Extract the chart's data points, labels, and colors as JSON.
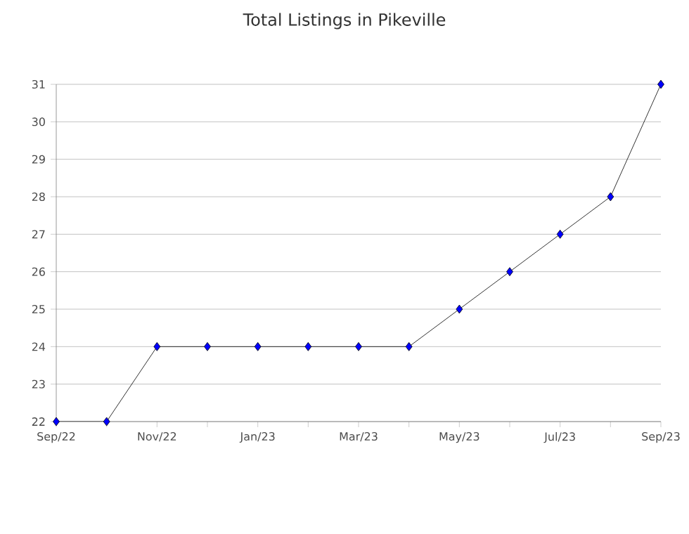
{
  "chart_data": {
    "type": "line",
    "title": "Total Listings in Pikeville",
    "x": [
      "2022-09",
      "2022-10",
      "2022-11",
      "2022-12",
      "2023-01",
      "2023-02",
      "2023-03",
      "2023-04",
      "2023-05",
      "2023-06",
      "2023-07",
      "2023-08",
      "2023-09"
    ],
    "series": [
      {
        "color": "#0000ff",
        "values": [
          22,
          22,
          24,
          24,
          24,
          24,
          24,
          24,
          25,
          26,
          27,
          28,
          31
        ]
      }
    ],
    "xlim": [
      "2022-09",
      "2023-09"
    ],
    "xticks": [
      {
        "value": "2022-09",
        "label": "Sep/22"
      },
      {
        "value": "2022-10",
        "label": null
      },
      {
        "value": "2022-11",
        "label": "Nov/22"
      },
      {
        "value": "2022-12",
        "label": null
      },
      {
        "value": "2023-01",
        "label": "Jan/23"
      },
      {
        "value": "2023-02",
        "label": null
      },
      {
        "value": "2023-03",
        "label": "Mar/23"
      },
      {
        "value": "2023-04",
        "label": null
      },
      {
        "value": "2023-05",
        "label": "May/23"
      },
      {
        "value": "2023-06",
        "label": null
      },
      {
        "value": "2023-07",
        "label": "Jul/23"
      },
      {
        "value": "2023-08",
        "label": null
      },
      {
        "value": "2023-09",
        "label": "Sep/23"
      }
    ],
    "ylim": [
      22,
      31
    ],
    "yticks": [
      22,
      23,
      24,
      25,
      26,
      27,
      28,
      29,
      30,
      31
    ],
    "grid": "y",
    "marker": "diamond",
    "line_style": "solid"
  }
}
